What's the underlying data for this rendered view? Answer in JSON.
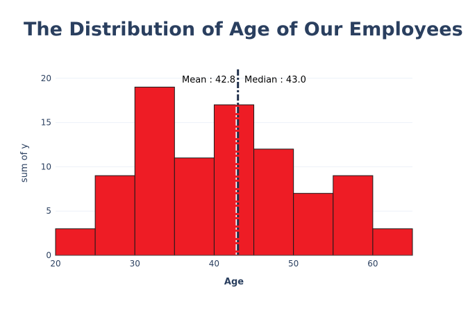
{
  "chart_data": {
    "type": "bar",
    "title": "The Distribution of Age of Our Employees",
    "xlabel": "Age",
    "ylabel": "sum of y",
    "xlim": [
      20,
      65
    ],
    "ylim": [
      0,
      21
    ],
    "x_ticks": [
      20,
      30,
      40,
      50,
      60
    ],
    "y_ticks": [
      0,
      5,
      10,
      15,
      20
    ],
    "bins": [
      {
        "start": 20,
        "end": 25,
        "value": 3
      },
      {
        "start": 25,
        "end": 30,
        "value": 9
      },
      {
        "start": 30,
        "end": 35,
        "value": 19
      },
      {
        "start": 35,
        "end": 40,
        "value": 11
      },
      {
        "start": 40,
        "end": 45,
        "value": 17
      },
      {
        "start": 45,
        "end": 50,
        "value": 12
      },
      {
        "start": 50,
        "end": 55,
        "value": 7
      },
      {
        "start": 55,
        "end": 60,
        "value": 9
      },
      {
        "start": 60,
        "end": 65,
        "value": 3
      }
    ],
    "mean": 42.8,
    "median": 43.0,
    "mean_label": "Mean :  42.8",
    "median_label": "Median :  43.0",
    "bar_color": "#ee1c25",
    "bar_edge_color": "#1a1a1a",
    "mean_line_color": "#ffffff",
    "median_line_color": "#1f2f4a",
    "title_color": "#2a3f5f",
    "grid": true,
    "legend": "none"
  }
}
